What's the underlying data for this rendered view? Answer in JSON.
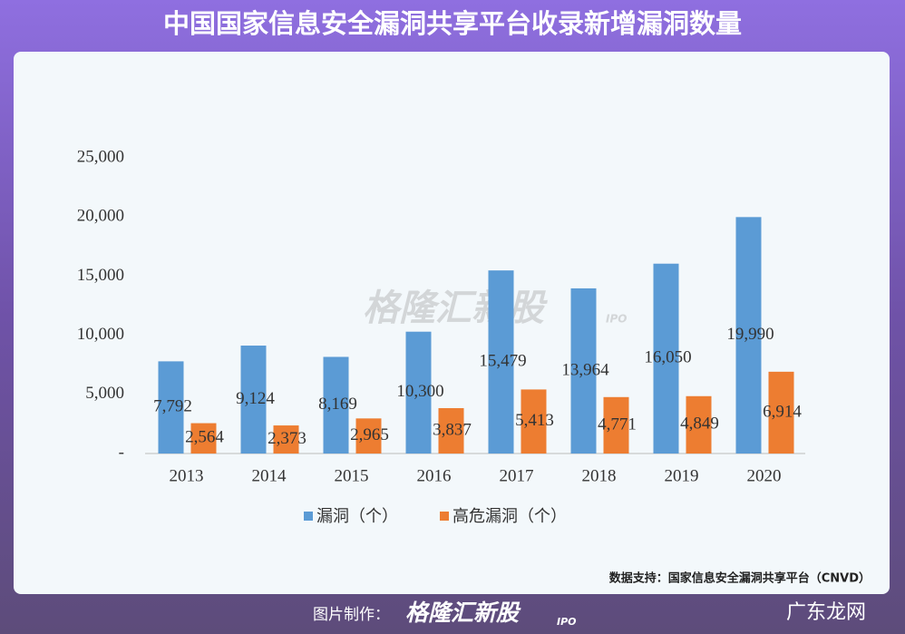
{
  "header": {
    "title": "中国国家信息安全漏洞共享平台收录新增漏洞数量"
  },
  "watermark": {
    "brand": "格隆汇新股",
    "sub": "IPO"
  },
  "source": "数据支持：国家信息安全漏洞共享平台（CNVD）",
  "footer": {
    "credit": "图片制作：",
    "brand": "格隆汇新股",
    "sub": "IPO",
    "corner": "广东龙网"
  },
  "chart_data": {
    "type": "bar",
    "categories": [
      "2013",
      "2014",
      "2015",
      "2016",
      "2017",
      "2018",
      "2019",
      "2020"
    ],
    "series": [
      {
        "name": "漏洞（个）",
        "color": "#5b9bd5",
        "values": [
          7792,
          9124,
          8169,
          10300,
          15479,
          13964,
          16050,
          19990
        ],
        "value_labels": [
          "7,792",
          "9,124",
          "8,169",
          "10,300",
          "15,479",
          "13,964",
          "16,050",
          "19,990"
        ]
      },
      {
        "name": "高危漏洞（个）",
        "color": "#ed7d31",
        "values": [
          2564,
          2373,
          2965,
          3837,
          5413,
          4771,
          4849,
          6914
        ],
        "value_labels": [
          "2,564",
          "2,373",
          "2,965",
          "3,837",
          "5,413",
          "4,771",
          "4,849",
          "6,914"
        ]
      }
    ],
    "ylim": [
      0,
      25000
    ],
    "yticks": [
      {
        "value": 0,
        "label": "-"
      },
      {
        "value": 5000,
        "label": "5,000"
      },
      {
        "value": 10000,
        "label": "10,000"
      },
      {
        "value": 15000,
        "label": "15,000"
      },
      {
        "value": 20000,
        "label": "20,000"
      },
      {
        "value": 25000,
        "label": "25,000"
      }
    ],
    "grid": false
  }
}
